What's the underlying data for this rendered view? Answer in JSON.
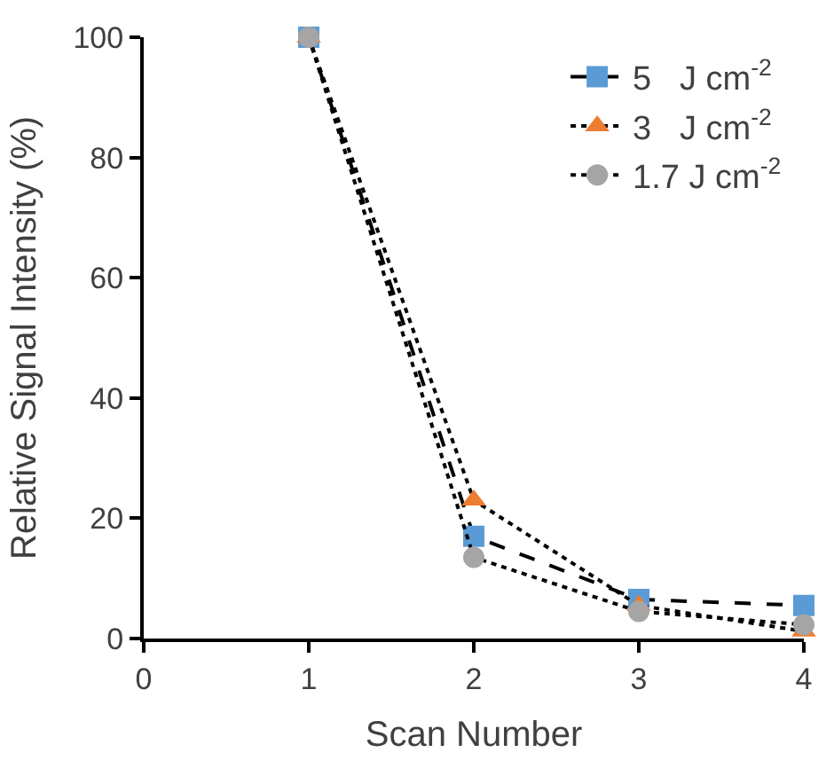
{
  "chart_data": {
    "type": "line",
    "xlabel": "Scan Number",
    "ylabel": "Relative Signal Intensity (%)",
    "x": [
      1,
      2,
      3,
      4
    ],
    "xlim": [
      0,
      4
    ],
    "xticks": [
      0,
      1,
      2,
      3,
      4
    ],
    "ylim": [
      0,
      100
    ],
    "yticks": [
      0,
      20,
      40,
      60,
      80,
      100
    ],
    "legend": "top right",
    "series": [
      {
        "name": "5   J cm$^{-2}$",
        "color": "#5b9bd5",
        "values": [
          100,
          17,
          6.5,
          5.5
        ],
        "marker": "square",
        "line_style": "dashed"
      },
      {
        "name": "3   J cm$^{-2}$",
        "color": "#ed7d31",
        "values": [
          100,
          23,
          5.5,
          1.2
        ],
        "marker": "triangle",
        "line_style": "dotted"
      },
      {
        "name": "1.7 J cm$^{-2}$",
        "color": "#a5a5a5",
        "values": [
          100,
          13.5,
          4.5,
          2.3
        ],
        "marker": "circle",
        "line_style": "dotted"
      }
    ]
  }
}
